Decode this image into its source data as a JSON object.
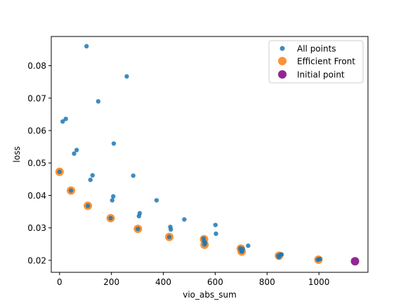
{
  "chart_data": {
    "type": "scatter",
    "xlabel": "vio_abs_sum",
    "ylabel": "loss",
    "xlim": [
      -32,
      1189
    ],
    "ylim": [
      0.0163,
      0.089
    ],
    "xticks": [
      0,
      200,
      400,
      600,
      800,
      1000
    ],
    "yticks": [
      0.02,
      0.03,
      0.04,
      0.05,
      0.06,
      0.07,
      0.08
    ],
    "xtick_labels": [
      "0",
      "200",
      "400",
      "600",
      "800",
      "1000"
    ],
    "ytick_labels": [
      "0.02",
      "0.03",
      "0.04",
      "0.05",
      "0.06",
      "0.07",
      "0.08"
    ],
    "grid": false,
    "legend_position": "top-right",
    "series": [
      {
        "name": "All points",
        "color": "#1f77b4",
        "marker": "small-circle",
        "points": [
          [
            0,
            0.0473
          ],
          [
            12,
            0.0628
          ],
          [
            24,
            0.0636
          ],
          [
            44,
            0.0415
          ],
          [
            56,
            0.0529
          ],
          [
            66,
            0.054
          ],
          [
            104,
            0.086
          ],
          [
            109,
            0.0368
          ],
          [
            119,
            0.0448
          ],
          [
            127,
            0.0462
          ],
          [
            149,
            0.069
          ],
          [
            197,
            0.033
          ],
          [
            203,
            0.0385
          ],
          [
            207,
            0.0397
          ],
          [
            209,
            0.056
          ],
          [
            259,
            0.0767
          ],
          [
            284,
            0.0461
          ],
          [
            302,
            0.0297
          ],
          [
            306,
            0.0336
          ],
          [
            309,
            0.0345
          ],
          [
            374,
            0.0385
          ],
          [
            423,
            0.0272
          ],
          [
            427,
            0.0303
          ],
          [
            429,
            0.0295
          ],
          [
            481,
            0.0326
          ],
          [
            555,
            0.0267
          ],
          [
            557,
            0.0259
          ],
          [
            559,
            0.0249
          ],
          [
            561,
            0.0254
          ],
          [
            601,
            0.0309
          ],
          [
            603,
            0.0282
          ],
          [
            697,
            0.0237
          ],
          [
            700,
            0.0232
          ],
          [
            702,
            0.0227
          ],
          [
            704,
            0.0228
          ],
          [
            706,
            0.0235
          ],
          [
            727,
            0.0245
          ],
          [
            843,
            0.0214
          ],
          [
            846,
            0.021
          ],
          [
            852,
            0.0218
          ],
          [
            856,
            0.0218
          ],
          [
            996,
            0.0202
          ],
          [
            998,
            0.0203
          ],
          [
            1004,
            0.0204
          ]
        ]
      },
      {
        "name": "Efficient Front",
        "color": "#ff7f0e",
        "marker": "large-circle",
        "points": [
          [
            0,
            0.0473
          ],
          [
            44,
            0.0415
          ],
          [
            109,
            0.0368
          ],
          [
            197,
            0.033
          ],
          [
            302,
            0.0297
          ],
          [
            423,
            0.0272
          ],
          [
            557,
            0.0265
          ],
          [
            559,
            0.0248
          ],
          [
            699,
            0.0236
          ],
          [
            702,
            0.0227
          ],
          [
            846,
            0.0214
          ],
          [
            998,
            0.0202
          ]
        ]
      },
      {
        "name": "Initial point",
        "color": "#800080",
        "marker": "large-circle",
        "points": [
          [
            1139,
            0.0197
          ]
        ]
      }
    ]
  }
}
